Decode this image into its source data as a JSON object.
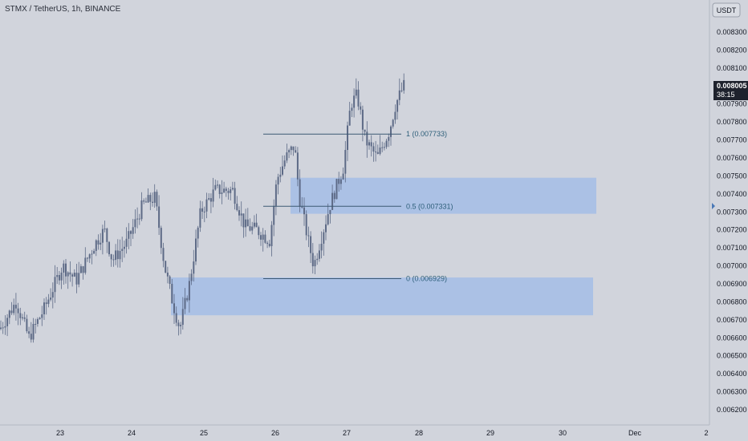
{
  "header": {
    "symbol_title": "STMX / TetherUS, 1h, BINANCE"
  },
  "price_axis": {
    "currency_label": "USDT",
    "ticks": [
      "0.008300",
      "0.008200",
      "0.008100",
      "0.008000",
      "0.007900",
      "0.007800",
      "0.007700",
      "0.007600",
      "0.007500",
      "0.007400",
      "0.007300",
      "0.007200",
      "0.007100",
      "0.007000",
      "0.006900",
      "0.006800",
      "0.006700",
      "0.006600",
      "0.006500",
      "0.006400",
      "0.006300",
      "0.006200"
    ],
    "current_price": "0.008005",
    "countdown": "38:15"
  },
  "time_axis": {
    "ticks": [
      "23",
      "24",
      "25",
      "26",
      "27",
      "28",
      "29",
      "30",
      "Dec",
      "2"
    ]
  },
  "fib_levels": [
    {
      "label": "1 (0.007733)",
      "price": 0.007733
    },
    {
      "label": "0.5 (0.007331)",
      "price": 0.007331
    },
    {
      "label": "0 (0.006929)",
      "price": 0.006929
    }
  ],
  "zones": [
    {
      "name": "upper-demand-zone",
      "price_high": 0.00749,
      "price_low": 0.00729
    },
    {
      "name": "lower-demand-zone",
      "price_high": 0.006935,
      "price_low": 0.006725
    }
  ],
  "colors": {
    "background": "#d1d4dc",
    "candle": "#5d6a86",
    "zone": "#a6bfe6",
    "fib_line": "#3d5a73",
    "fib_text": "#2e5f7a",
    "price_tag_bg": "#1e222d",
    "price_tag_text": "#ffffff"
  }
}
